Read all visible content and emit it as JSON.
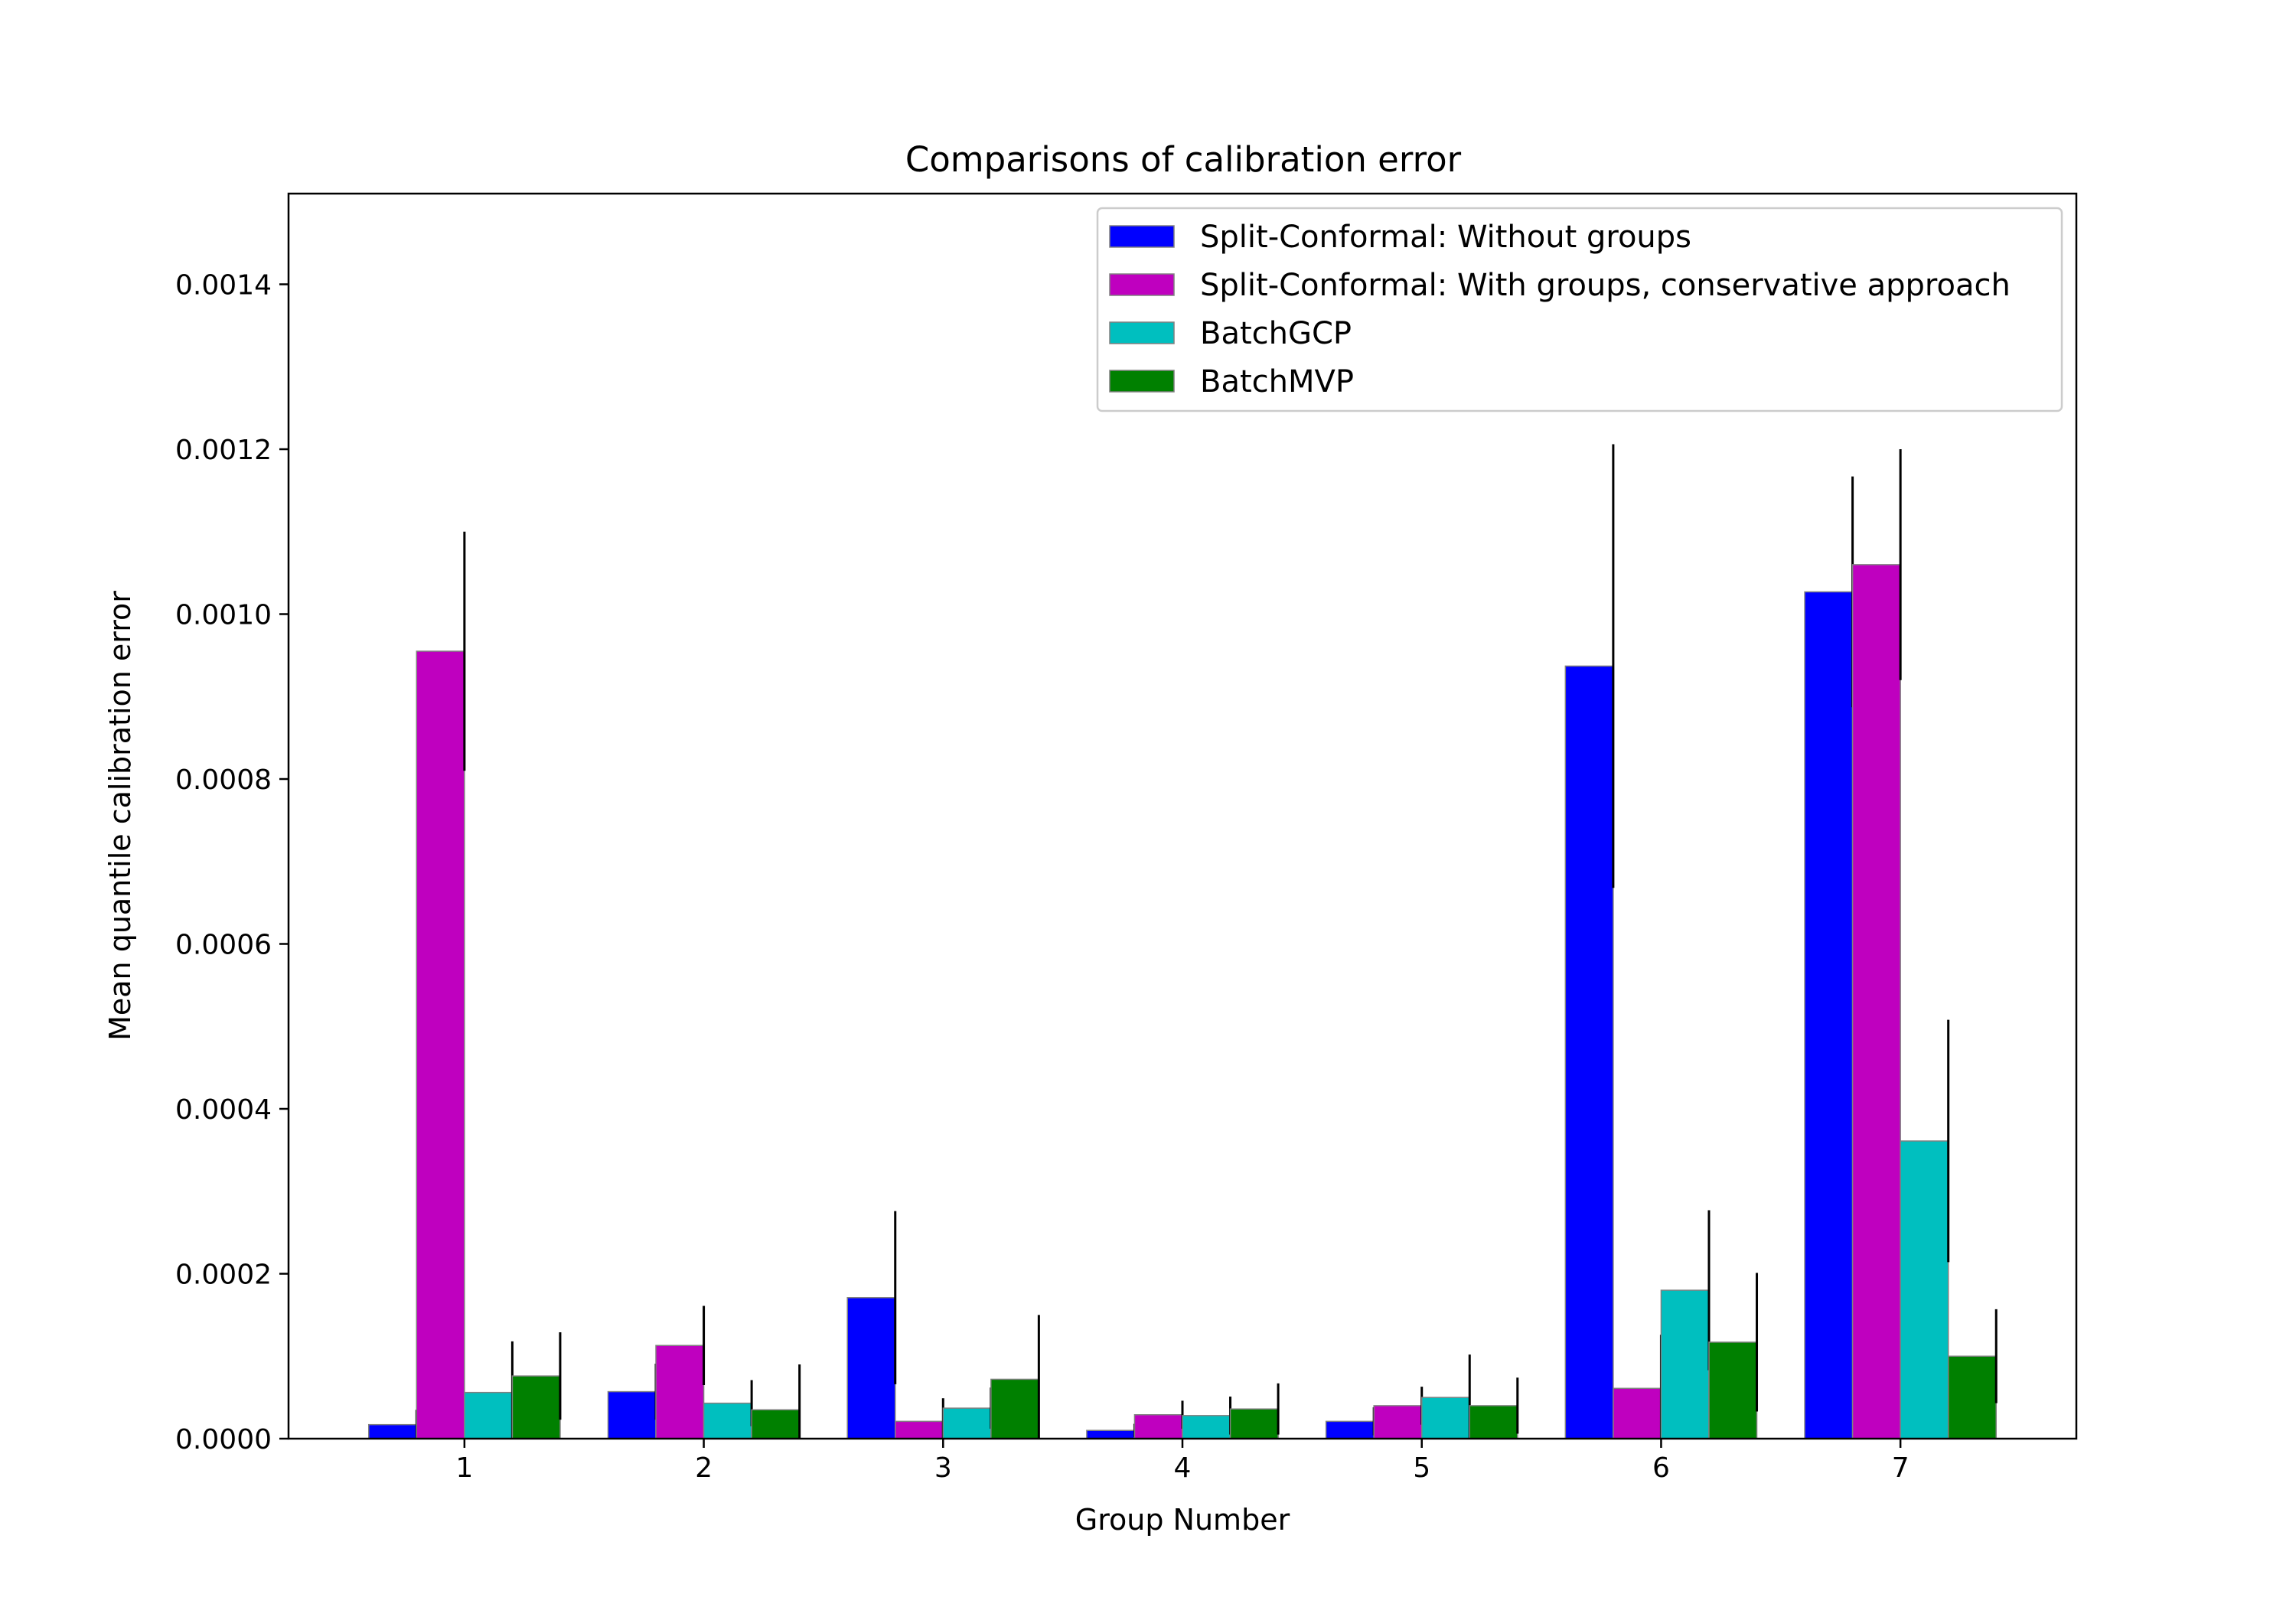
{
  "chart_data": {
    "type": "bar",
    "title": "Comparisons of calibration error",
    "xlabel": "Group Number",
    "ylabel": "Mean quantile calibration error",
    "categories": [
      "1",
      "2",
      "3",
      "4",
      "5",
      "6",
      "7"
    ],
    "ylim": [
      0,
      0.00151
    ],
    "yticks": [
      0,
      0.0002,
      0.0004,
      0.0006,
      0.0008,
      0.001,
      0.0012,
      0.0014
    ],
    "ytick_labels": [
      "0.0000",
      "0.0002",
      "0.0004",
      "0.0006",
      "0.0008",
      "0.0010",
      "0.0012",
      "0.0014"
    ],
    "legend_position": "top-right",
    "series": [
      {
        "name": "Split-Conformal: Without groups",
        "color": "#0000ff",
        "values": [
          1.7e-05,
          5.7e-05,
          0.000171,
          1e-05,
          2.1e-05,
          0.000937,
          0.001027
        ],
        "errors": [
          1.8e-05,
          3.4e-05,
          0.000105,
          8e-06,
          1.7e-05,
          0.000269,
          0.00014
        ]
      },
      {
        "name": "Split-Conformal: With groups, conservative approach",
        "color": "#bf00bf",
        "values": [
          0.000955,
          0.000113,
          2.1e-05,
          2.9e-05,
          4e-05,
          6.1e-05,
          0.00106
        ],
        "errors": [
          0.000145,
          4.8e-05,
          2.8e-05,
          1.7e-05,
          2.3e-05,
          6.5e-05,
          0.00014
        ]
      },
      {
        "name": "BatchGCP",
        "color": "#00bfbf",
        "values": [
          5.6e-05,
          4.3e-05,
          3.7e-05,
          2.8e-05,
          5e-05,
          0.00018,
          0.000361
        ],
        "errors": [
          6.2e-05,
          2.8e-05,
          2.5e-05,
          2.3e-05,
          5.2e-05,
          9.7e-05,
          0.000147
        ]
      },
      {
        "name": "BatchMVP",
        "color": "#008000",
        "values": [
          7.6e-05,
          3.5e-05,
          7.2e-05,
          3.6e-05,
          4e-05,
          0.000117,
          0.0001
        ],
        "errors": [
          5.3e-05,
          5.5e-05,
          7.8e-05,
          3.1e-05,
          3.4e-05,
          8.4e-05,
          5.7e-05
        ]
      }
    ]
  }
}
